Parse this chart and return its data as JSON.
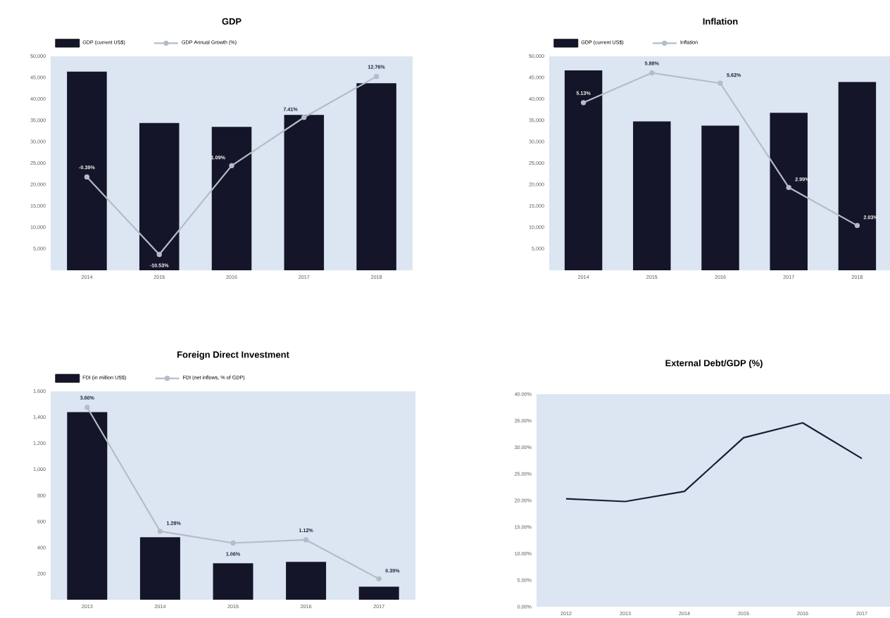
{
  "chart_data": [
    {
      "type": "bar",
      "title": "GDP",
      "categories": [
        "2014",
        "2015",
        "2016",
        "2017",
        "2018"
      ],
      "series": [
        {
          "name": "GDP (current US$)",
          "color": "#141529",
          "values": [
            46400,
            34400,
            33500,
            36300,
            43700
          ]
        },
        {
          "name": "GDP Annual Growth (%)",
          "type": "line",
          "axis": "y2",
          "color": "#b4bcc8",
          "values": [
            -0.39,
            -10.53,
            1.09,
            7.41,
            12.76
          ],
          "value_labels": [
            "-0.39%",
            "-10.53%",
            "1.09%",
            "7.41%",
            "12.76%"
          ]
        }
      ],
      "ylim": [
        0,
        50000
      ],
      "yticks": [
        {
          "value": 0,
          "label": null
        },
        {
          "value": 5000,
          "label": "5,000"
        },
        {
          "value": 10000,
          "label": "10,000"
        },
        {
          "value": 15000,
          "label": "15,000"
        },
        {
          "value": 20000,
          "label": "20,000"
        },
        {
          "value": 25000,
          "label": "25,000"
        },
        {
          "value": 30000,
          "label": "30,000"
        },
        {
          "value": 35000,
          "label": "35,000"
        },
        {
          "value": 40000,
          "label": "40,000"
        },
        {
          "value": 45000,
          "label": "45,000"
        },
        {
          "value": 50000,
          "label": "50,000"
        }
      ],
      "y2lim": [
        -12.6,
        15.4
      ],
      "legend": "top left",
      "marker": "circle"
    },
    {
      "type": "bar",
      "title": "Inflation",
      "categories": [
        "2014",
        "2015",
        "2016",
        "2017",
        "2018"
      ],
      "series": [
        {
          "name": "GDP (current US$)",
          "color": "#141529",
          "values": [
            46700,
            34800,
            33800,
            36800,
            44000
          ]
        },
        {
          "name": "Inflation",
          "type": "line",
          "axis": "y2",
          "color": "#b4bcc8",
          "values": [
            5.13,
            5.88,
            5.62,
            2.99,
            2.03
          ],
          "value_labels": [
            "5.13%",
            "5.88%",
            "5.62%",
            "2.99%",
            "2.03%"
          ]
        }
      ],
      "ylim": [
        0,
        50000
      ],
      "yticks": [
        {
          "value": 0,
          "label": null
        },
        {
          "value": 5000,
          "label": "5,000"
        },
        {
          "value": 10000,
          "label": "10,000"
        },
        {
          "value": 15000,
          "label": "15,000"
        },
        {
          "value": 20000,
          "label": "20,000"
        },
        {
          "value": 25000,
          "label": "25,000"
        },
        {
          "value": 30000,
          "label": "30,000"
        },
        {
          "value": 35000,
          "label": "35,000"
        },
        {
          "value": 40000,
          "label": "40,000"
        },
        {
          "value": 45000,
          "label": "45,000"
        },
        {
          "value": 50000,
          "label": "50,000"
        }
      ],
      "y2lim": [
        0.9,
        6.3
      ],
      "legend": "top left",
      "marker": "circle"
    },
    {
      "type": "bar",
      "title": "Foreign Direct Investment",
      "categories": [
        "2013",
        "2014",
        "2015",
        "2016",
        "2017"
      ],
      "series": [
        {
          "name": "FDI (in million US$)",
          "color": "#141529",
          "values": [
            1440,
            480,
            280,
            290,
            100
          ]
        },
        {
          "name": "FDI (net inflows, % of GDP)",
          "type": "line",
          "axis": "y2",
          "color": "#b4bcc8",
          "values": [
            3.6,
            1.28,
            1.06,
            1.12,
            0.39
          ],
          "value_labels": [
            "3.60%",
            "1.28%",
            "1.06%",
            "1.12%",
            "0.39%"
          ]
        }
      ],
      "ylim": [
        0,
        1600
      ],
      "yticks": [
        {
          "value": 0,
          "label": null
        },
        200,
        400,
        600,
        800,
        {
          "value": 1000,
          "label": "1,000"
        },
        {
          "value": 1200,
          "label": "1,200"
        },
        {
          "value": 1400,
          "label": "1,400"
        },
        {
          "value": 1600,
          "label": "1,600"
        }
      ],
      "y2lim": [
        0,
        3.9
      ],
      "legend": "top left",
      "marker": "circle"
    },
    {
      "type": "line",
      "title": "External Debt/GDP (%)",
      "categories": [
        "2012",
        "2013",
        "2014",
        "2015",
        "2016",
        "2017"
      ],
      "values": [
        20.3,
        19.8,
        21.7,
        31.8,
        34.6,
        27.9
      ],
      "color": "#1a1d33",
      "ylim": [
        0,
        40
      ],
      "yticks": [
        {
          "value": 0,
          "label": "0.00%"
        },
        {
          "value": 5,
          "label": "5.00%"
        },
        {
          "value": 10,
          "label": "10.00%"
        },
        {
          "value": 15,
          "label": "15.00%"
        },
        {
          "value": 20,
          "label": "20.00%"
        },
        {
          "value": 25,
          "label": "25.00%"
        },
        {
          "value": 30,
          "label": "30.00%"
        },
        {
          "value": 35,
          "label": "35.00%"
        },
        {
          "value": 40,
          "label": "40.00%"
        }
      ]
    }
  ]
}
